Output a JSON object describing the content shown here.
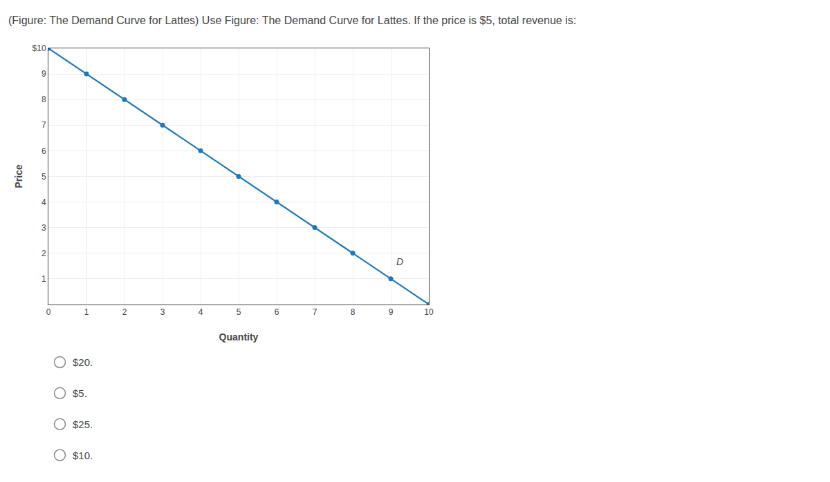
{
  "chart_data": {
    "type": "line",
    "title": "(Figure: The Demand Curve for Lattes) Use Figure: The Demand Curve for Lattes. If the price is $5, total revenue is:",
    "xlabel": "Quantity",
    "ylabel": "Price",
    "x": [
      0,
      1,
      2,
      3,
      4,
      5,
      6,
      7,
      8,
      9,
      10
    ],
    "values": [
      10,
      9,
      8,
      7,
      6,
      5,
      4,
      3,
      2,
      1,
      0
    ],
    "marker": "circle",
    "xlim": [
      0,
      10
    ],
    "ylim": [
      0,
      10
    ],
    "xticks": [
      0,
      1,
      2,
      3,
      4,
      5,
      6,
      7,
      8,
      9,
      10
    ],
    "yticks": [
      1,
      2,
      3,
      4,
      5,
      6,
      7,
      8,
      9,
      {
        "value": 10,
        "label": "$10"
      }
    ],
    "grid": true,
    "annotations": [
      {
        "text": "D",
        "x": 9.1,
        "y": 1.4
      },
      {
        "text": "$20."
      },
      {
        "text": "$5."
      },
      {
        "text": "$25."
      },
      {
        "text": "$10."
      }
    ]
  }
}
